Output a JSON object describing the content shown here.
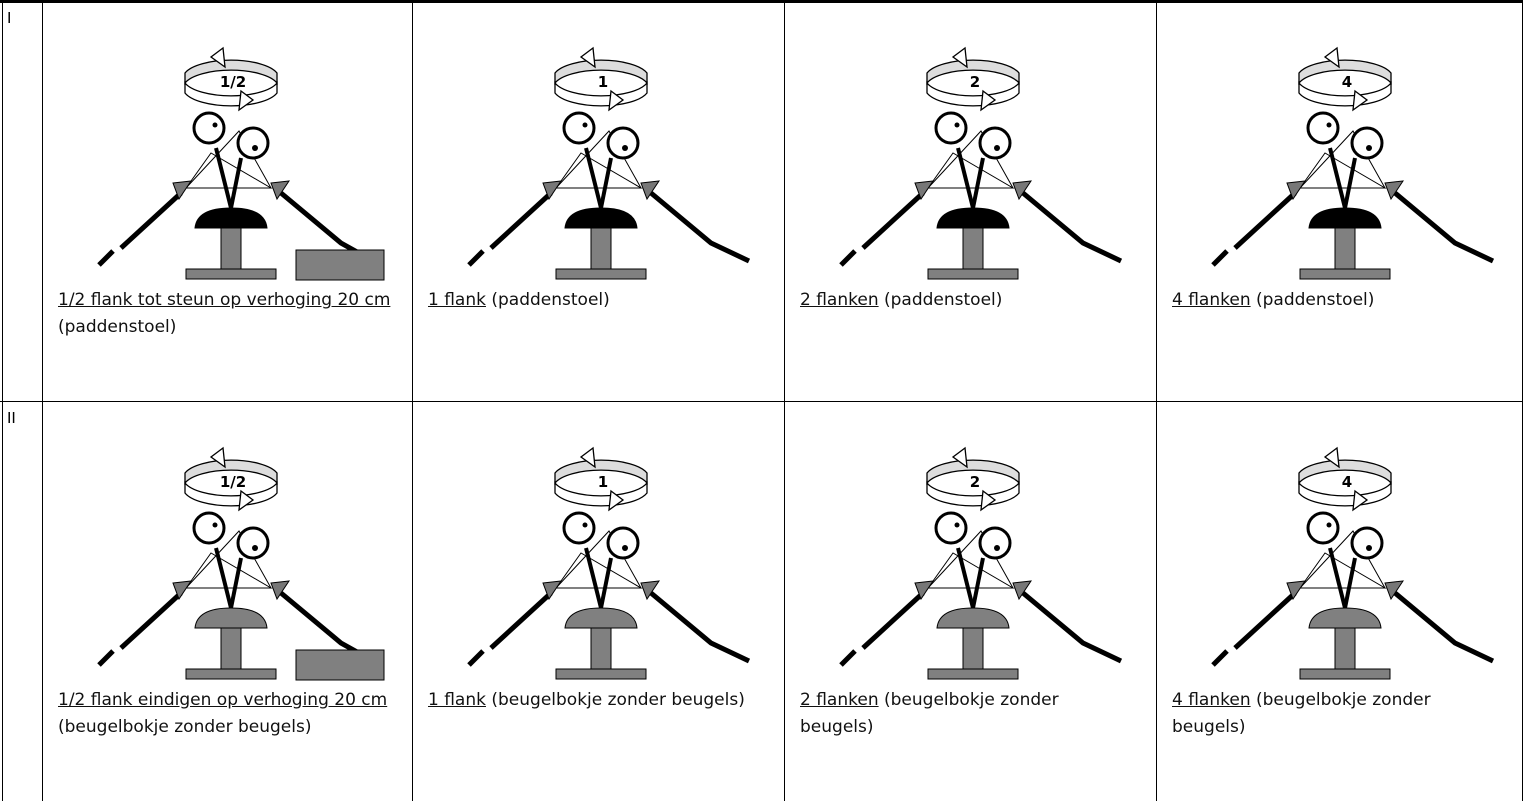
{
  "rows": [
    {
      "label": "I",
      "cells": [
        {
          "turns": "1/2",
          "link": "1/2 flank tot steun op verhoging 20 cm",
          "note": "(paddenstoel)"
        },
        {
          "turns": "1",
          "link": "1 flank",
          "note": "(paddenstoel)"
        },
        {
          "turns": "2",
          "link": "2 flanken",
          "note": "(paddenstoel)"
        },
        {
          "turns": "4",
          "link": "4 flanken",
          "note": "(paddenstoel)"
        }
      ]
    },
    {
      "label": "II",
      "cells": [
        {
          "turns": "1/2",
          "link": "1/2 flank eindigen op verhoging 20 cm",
          "note": "(beugelbokje zonder beugels)"
        },
        {
          "turns": "1",
          "link": "1 flank",
          "note": "(beugelbokje zonder beugels)"
        },
        {
          "turns": "2",
          "link": "2 flanken",
          "note": "(beugelbokje zonder beugels)"
        },
        {
          "turns": "4",
          "link": "4 flanken",
          "note": "(beugelbokje zonder beugels)"
        }
      ]
    }
  ]
}
